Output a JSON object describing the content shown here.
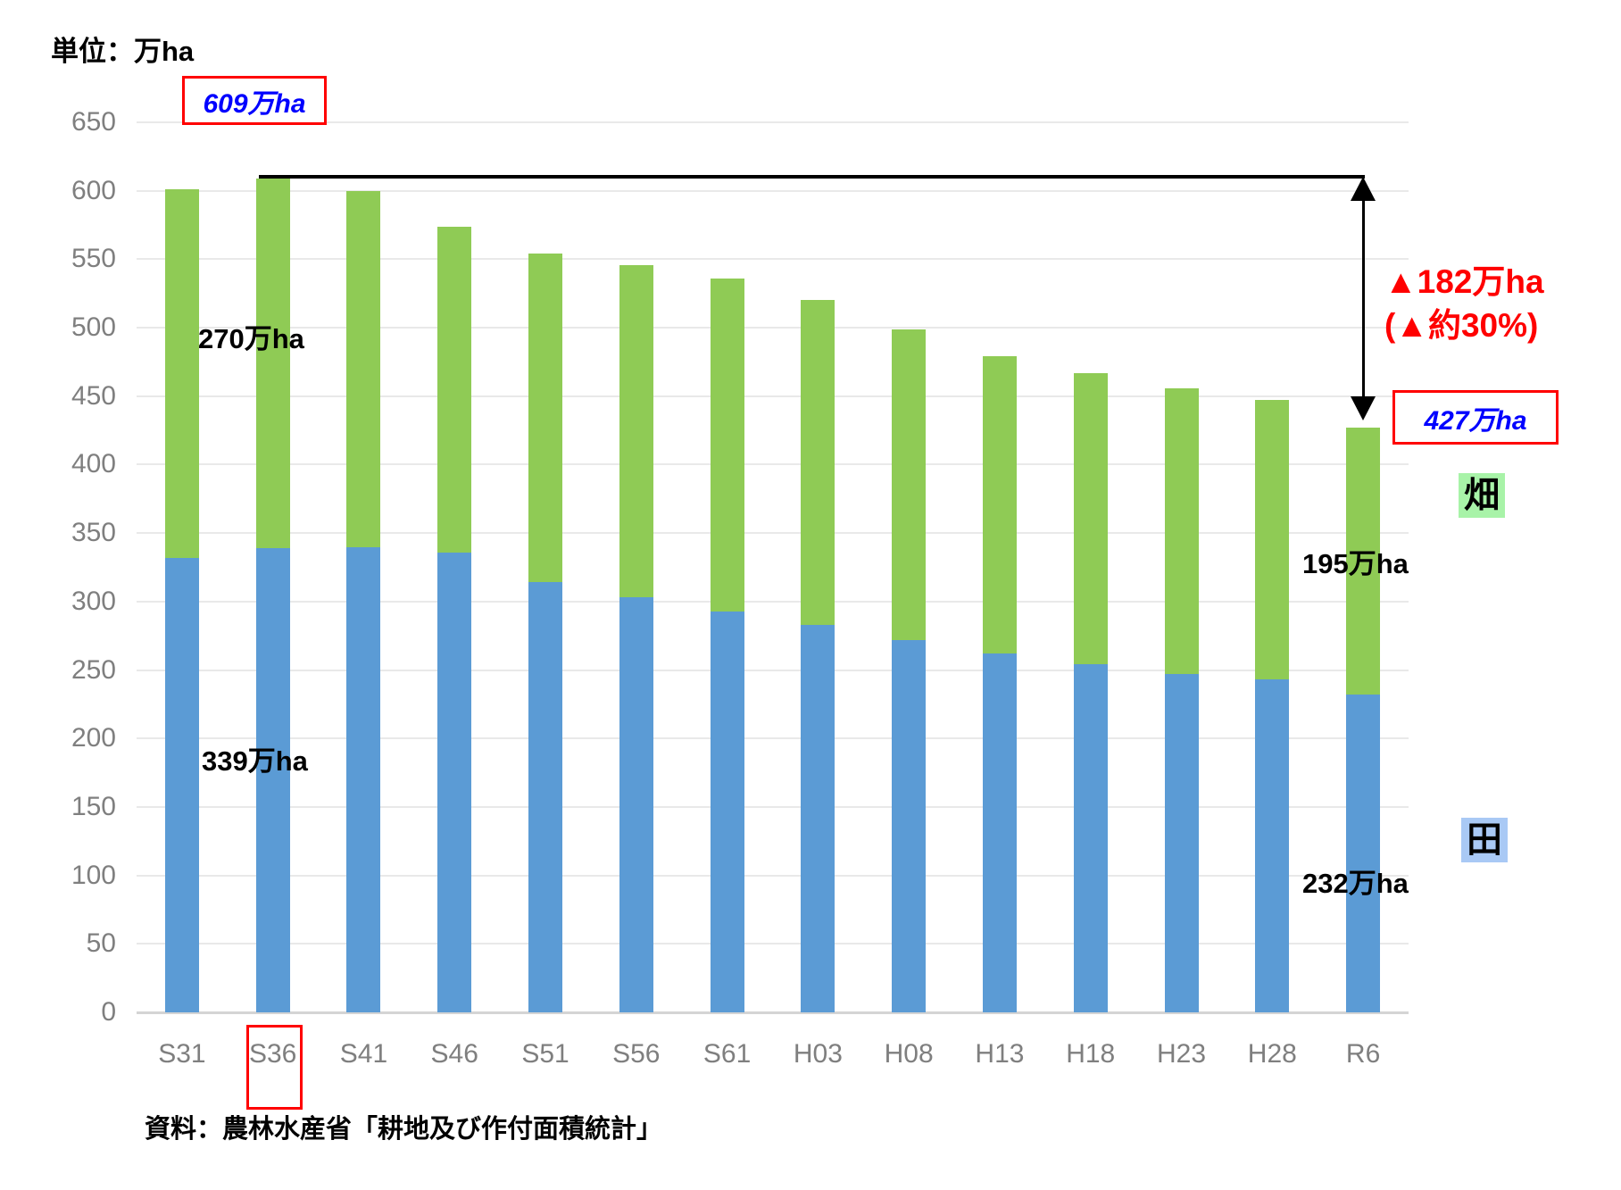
{
  "unit_label": "単位：万ha",
  "source_note": "資料：農林水産省「耕地及び作付面積統計」",
  "legend": {
    "upland": "畑",
    "paddy": "田"
  },
  "annotations": {
    "peak_value_label": "609万ha",
    "latest_value_label": "427万ha",
    "decline_amount": "▲182万ha",
    "decline_percent": "(▲約30%)",
    "upland_1961_label": "270万ha",
    "paddy_1961_label": "339万ha",
    "upland_2024_label": "195万ha",
    "paddy_2024_label": "232万ha",
    "highlighted_category": "S36"
  },
  "colors": {
    "paddy_bar": "#5B9BD5",
    "upland_bar": "#8FCB55",
    "paddy_legend_bg": "#A9C9F5",
    "upland_legend_bg": "#A8F3A8",
    "annotation_red": "#FF0000",
    "annotation_blue": "#0000FF",
    "axis_text": "#7F7F7F",
    "gridline": "#E9E9E9"
  },
  "chart_data": {
    "type": "bar",
    "stacked": true,
    "title": "",
    "ylabel": "万ha",
    "xlabel": "",
    "grid": true,
    "ylim": [
      0,
      650
    ],
    "y_ticks": [
      0,
      50,
      100,
      150,
      200,
      250,
      300,
      350,
      400,
      450,
      500,
      550,
      600,
      650
    ],
    "categories": [
      "S31",
      "S36",
      "S41",
      "S46",
      "S51",
      "S56",
      "S61",
      "H03",
      "H08",
      "H13",
      "H18",
      "H23",
      "H28",
      "R6"
    ],
    "series": [
      {
        "name": "田",
        "color": "#5B9BD5",
        "values": [
          332,
          339,
          340,
          336,
          314,
          303,
          293,
          283,
          272,
          262,
          254,
          247,
          243,
          232
        ]
      },
      {
        "name": "畑",
        "color": "#8FCB55",
        "values": [
          269,
          270,
          260,
          238,
          240,
          243,
          243,
          237,
          227,
          217,
          213,
          209,
          204,
          195
        ]
      }
    ],
    "totals": [
      601,
      609,
      600,
      574,
      554,
      546,
      536,
      520,
      499,
      479,
      467,
      456,
      447,
      427
    ]
  }
}
